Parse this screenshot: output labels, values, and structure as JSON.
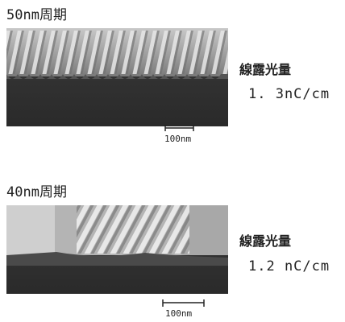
{
  "panels": [
    {
      "label": "50nm周期",
      "dose_label": "線露光量",
      "dose_value": "1. 3nC/cm",
      "scale_label": "100nm"
    },
    {
      "label": "40nm周期",
      "dose_label": "線露光量",
      "dose_value": "1.2 nC/cm",
      "scale_label": "100nm"
    }
  ]
}
